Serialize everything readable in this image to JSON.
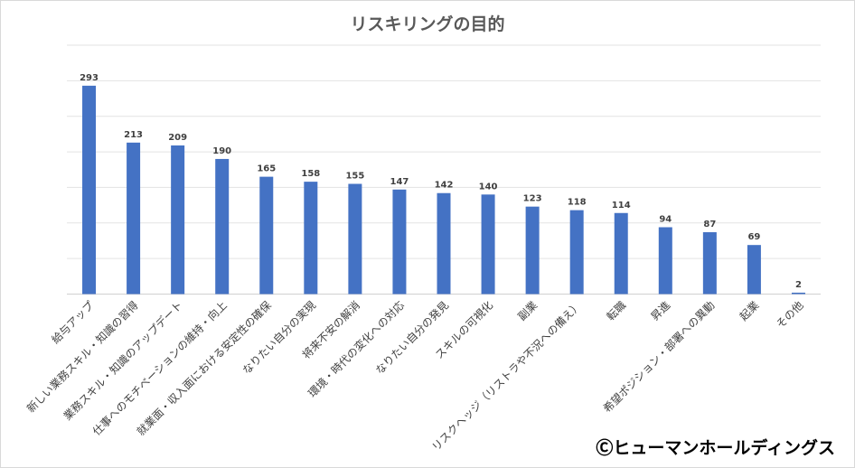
{
  "chart_data": {
    "type": "bar",
    "title": "リスキリングの目的",
    "xlabel": "",
    "ylabel": "",
    "ylim": [
      0,
      350
    ],
    "grid": true,
    "categories": [
      "給与アップ",
      "新しい業務スキル・知識の習得",
      "業務スキル・知識のアップデート",
      "仕事へのモチベーションの維持・向上",
      "就業面・収入面における安定性の確保",
      "なりたい自分の実現",
      "将来不安の解消",
      "環境・時代の変化への対応",
      "なりたい自分の発見",
      "スキルの可視化",
      "副業",
      "リスクヘッジ（リストラや不況への備え）",
      "転職",
      "昇進",
      "希望ポジション・部署への異動",
      "起業",
      "その他"
    ],
    "values": [
      293,
      213,
      209,
      190,
      165,
      158,
      155,
      147,
      142,
      140,
      123,
      118,
      114,
      94,
      87,
      69,
      2
    ],
    "bar_color": "#4472c4"
  },
  "credit": "Ⓒヒューマンホールディングス"
}
